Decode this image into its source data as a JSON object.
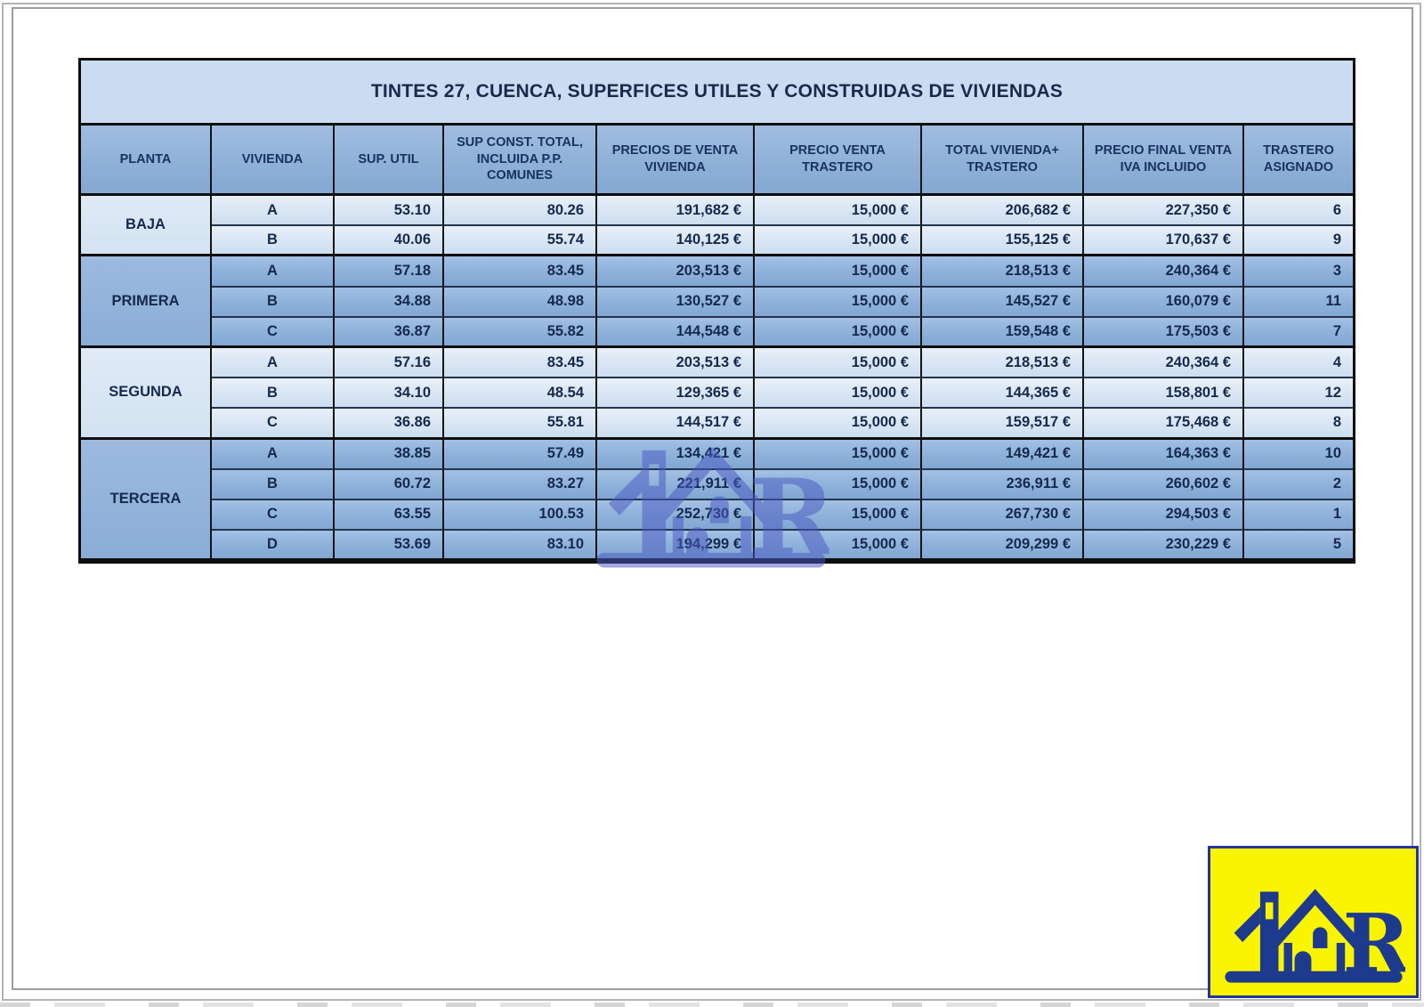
{
  "document": {
    "title": "TINTES 27, CUENCA, SUPERFICES UTILES Y CONSTRUIDAS DE VIVIENDAS"
  },
  "table": {
    "columns": [
      "PLANTA",
      "VIVIENDA",
      "SUP. UTIL",
      "SUP CONST. TOTAL, INCLUIDA P.P. COMUNES",
      "PRECIOS DE VENTA VIVIENDA",
      "PRECIO VENTA TRASTERO",
      "TOTAL VIVIENDA+ TRASTERO",
      "PRECIO FINAL VENTA IVA INCLUIDO",
      "TRASTERO ASIGNADO"
    ],
    "groups": [
      {
        "planta": "BAJA",
        "shade": "light",
        "rows": [
          [
            "A",
            "53.10",
            "80.26",
            "191,682 €",
            "15,000 €",
            "206,682 €",
            "227,350 €",
            "6"
          ],
          [
            "B",
            "40.06",
            "55.74",
            "140,125 €",
            "15,000 €",
            "155,125 €",
            "170,637 €",
            "9"
          ]
        ]
      },
      {
        "planta": "PRIMERA",
        "shade": "dark",
        "rows": [
          [
            "A",
            "57.18",
            "83.45",
            "203,513 €",
            "15,000 €",
            "218,513 €",
            "240,364 €",
            "3"
          ],
          [
            "B",
            "34.88",
            "48.98",
            "130,527 €",
            "15,000 €",
            "145,527 €",
            "160,079 €",
            "11"
          ],
          [
            "C",
            "36.87",
            "55.82",
            "144,548 €",
            "15,000 €",
            "159,548 €",
            "175,503 €",
            "7"
          ]
        ]
      },
      {
        "planta": "SEGUNDA",
        "shade": "light",
        "rows": [
          [
            "A",
            "57.16",
            "83.45",
            "203,513 €",
            "15,000 €",
            "218,513 €",
            "240,364 €",
            "4"
          ],
          [
            "B",
            "34.10",
            "48.54",
            "129,365 €",
            "15,000 €",
            "144,365 €",
            "158,801 €",
            "12"
          ],
          [
            "C",
            "36.86",
            "55.81",
            "144,517 €",
            "15,000 €",
            "159,517 €",
            "175,468 €",
            "8"
          ]
        ]
      },
      {
        "planta": "TERCERA",
        "shade": "dark",
        "rows": [
          [
            "A",
            "38.85",
            "57.49",
            "134,421 €",
            "15,000 €",
            "149,421 €",
            "164,363 €",
            "10"
          ],
          [
            "B",
            "60.72",
            "83.27",
            "221,911 €",
            "15,000 €",
            "236,911 €",
            "260,602 €",
            "2"
          ],
          [
            "C",
            "63.55",
            "100.53",
            "252,730 €",
            "15,000 €",
            "267,730 €",
            "294,503 €",
            "1"
          ],
          [
            "D",
            "53.69",
            "83.10",
            "194,299 €",
            "15,000 €",
            "209,299 €",
            "230,229 €",
            "5"
          ]
        ]
      }
    ]
  },
  "branding": {
    "logo_letter": "R",
    "logo_navy": "#1e3a8f",
    "logo_yellow": "#f9f500",
    "watermark_blue": "#4a5ac2"
  }
}
